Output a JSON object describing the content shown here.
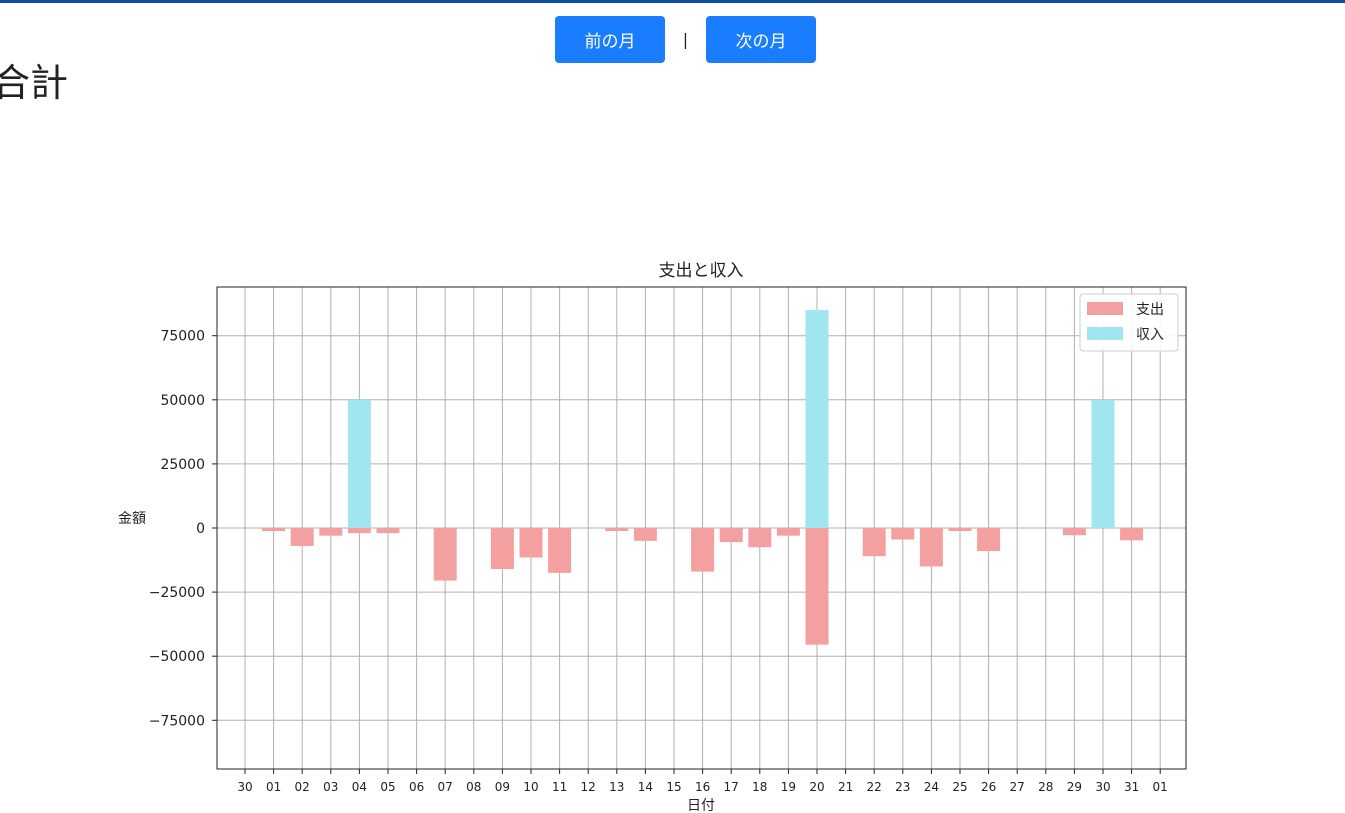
{
  "nav": {
    "prev_label": "前の月",
    "separator": "|",
    "next_label": "次の月"
  },
  "page": {
    "title": "合計"
  },
  "colors": {
    "expense": "#f4a0a0",
    "income": "#a0e6f0",
    "button": "#1a7dff",
    "topbar": "#0a4ea0"
  },
  "chart_data": {
    "type": "bar",
    "title": "支出と収入",
    "xlabel": "日付",
    "ylabel": "金額",
    "ylim": [
      -94000,
      94000
    ],
    "yticks": [
      -75000,
      -50000,
      -25000,
      0,
      25000,
      50000,
      75000
    ],
    "grid": true,
    "legend_position": "top-right",
    "categories": [
      "30",
      "01",
      "02",
      "03",
      "04",
      "05",
      "06",
      "07",
      "08",
      "09",
      "10",
      "11",
      "12",
      "13",
      "14",
      "15",
      "16",
      "17",
      "18",
      "19",
      "20",
      "21",
      "22",
      "23",
      "24",
      "25",
      "26",
      "27",
      "28",
      "29",
      "30",
      "31",
      "01"
    ],
    "series": [
      {
        "name": "支出",
        "color": "#f4a0a0",
        "values": [
          0,
          -1200,
          -7000,
          -3000,
          -2000,
          -2000,
          0,
          -20500,
          0,
          -16000,
          -11500,
          -17500,
          0,
          -1200,
          -5000,
          0,
          -17000,
          -5500,
          -7500,
          -3000,
          -45500,
          0,
          -11000,
          -4500,
          -15000,
          -1200,
          -9000,
          0,
          0,
          -2800,
          0,
          -4800,
          0
        ]
      },
      {
        "name": "収入",
        "color": "#a0e6f0",
        "values": [
          0,
          0,
          0,
          0,
          50000,
          0,
          0,
          0,
          0,
          0,
          0,
          0,
          0,
          0,
          0,
          0,
          0,
          0,
          0,
          0,
          85000,
          0,
          0,
          0,
          0,
          0,
          0,
          0,
          0,
          0,
          50000,
          0,
          0
        ]
      }
    ]
  }
}
